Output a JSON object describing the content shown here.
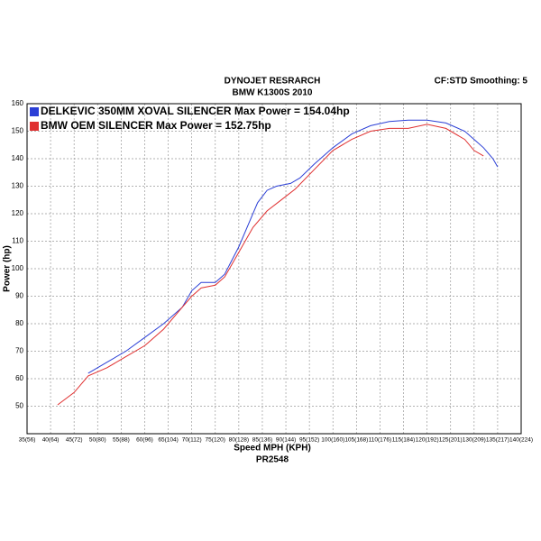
{
  "chart_data": {
    "type": "line",
    "title": "DYNOJET RESRARCH",
    "subtitle": "BMW K1300S 2010",
    "settings_label": "CF:STD Smoothing: 5",
    "x_label": "Speed MPH (KPH)",
    "footer": "PR2548",
    "y_label": "Power (hp)",
    "xlim": [
      35,
      140
    ],
    "xticks": [
      {
        "value": 35,
        "label": "35(56)"
      },
      {
        "value": 40,
        "label": "40(64)"
      },
      {
        "value": 45,
        "label": "45(72)"
      },
      {
        "value": 50,
        "label": "50(80)"
      },
      {
        "value": 55,
        "label": "55(88)"
      },
      {
        "value": 60,
        "label": "60(96)"
      },
      {
        "value": 65,
        "label": "65(104)"
      },
      {
        "value": 70,
        "label": "70(112)"
      },
      {
        "value": 75,
        "label": "75(120)"
      },
      {
        "value": 80,
        "label": "80(128)"
      },
      {
        "value": 85,
        "label": "85(136)"
      },
      {
        "value": 90,
        "label": "90(144)"
      },
      {
        "value": 95,
        "label": "95(152)"
      },
      {
        "value": 100,
        "label": "100(160)"
      },
      {
        "value": 105,
        "label": "105(168)"
      },
      {
        "value": 110,
        "label": "110(176)"
      },
      {
        "value": 115,
        "label": "115(184)"
      },
      {
        "value": 120,
        "label": "120(192)"
      },
      {
        "value": 125,
        "label": "125(201)"
      },
      {
        "value": 130,
        "label": "130(209)"
      },
      {
        "value": 135,
        "label": "135(217)"
      },
      {
        "value": 140,
        "label": "140(224)"
      }
    ],
    "ylim": [
      40,
      160
    ],
    "yticks": [
      50,
      60,
      70,
      80,
      90,
      100,
      110,
      120,
      130,
      140,
      150,
      160
    ],
    "grid": true,
    "series": [
      {
        "name": "DELKEVIC 350MM XOVAL SILENCER Max Power = 154.04hp",
        "color": "#2b3fd6",
        "x": [
          48,
          52,
          56,
          60,
          64,
          68,
          70,
          72,
          75,
          77,
          80,
          82,
          84,
          86,
          88,
          91,
          93,
          96,
          100,
          104,
          108,
          112,
          116,
          120,
          124,
          128,
          130,
          132,
          134,
          135
        ],
        "values": [
          62,
          66,
          70,
          75,
          80,
          86,
          92,
          95,
          95,
          98,
          108,
          116,
          124,
          128.5,
          130,
          131,
          133,
          138,
          144,
          149,
          152,
          153.5,
          154,
          154,
          153,
          150,
          147,
          144,
          140,
          137
        ]
      },
      {
        "name": "BMW OEM SILENCER Max Power = 152.75hp",
        "color": "#e03030",
        "x": [
          41.5,
          45,
          48,
          52,
          56,
          60,
          64,
          68,
          70,
          72,
          75,
          77,
          80,
          83,
          86,
          89,
          92,
          96,
          100,
          104,
          108,
          112,
          116,
          120,
          124,
          128,
          130,
          132
        ],
        "values": [
          50.5,
          55,
          61,
          64,
          68,
          72,
          78,
          86,
          90,
          93,
          94,
          97,
          106,
          115,
          121,
          125,
          129,
          136,
          143,
          147,
          150,
          151,
          151,
          152.5,
          151,
          147,
          143,
          141
        ]
      }
    ]
  }
}
